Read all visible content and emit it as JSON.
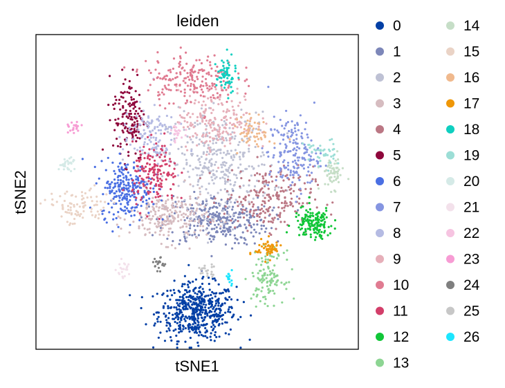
{
  "chart_data": {
    "type": "scatter",
    "title": "leiden",
    "xlabel": "tSNE1",
    "ylabel": "tSNE2",
    "grid": false,
    "legend_position": "right",
    "xlim": [
      0,
      100
    ],
    "ylim": [
      0,
      100
    ],
    "clusters": [
      {
        "name": "0",
        "color": "#023fa5",
        "center": [
          50,
          12
        ],
        "spread": [
          6,
          4.5
        ],
        "n": 520
      },
      {
        "name": "1",
        "color": "#7d87b9",
        "center": [
          56,
          41
        ],
        "spread": [
          8,
          4
        ],
        "n": 300
      },
      {
        "name": "2",
        "color": "#bec1d4",
        "center": [
          57,
          59
        ],
        "spread": [
          8,
          8
        ],
        "n": 340
      },
      {
        "name": "3",
        "color": "#d6bcc0",
        "center": [
          41,
          42
        ],
        "spread": [
          6,
          4
        ],
        "n": 220
      },
      {
        "name": "4",
        "color": "#bb7784",
        "center": [
          72,
          48
        ],
        "spread": [
          7,
          5
        ],
        "n": 220
      },
      {
        "name": "5",
        "color": "#8e063b",
        "center": [
          29,
          74
        ],
        "spread": [
          2.5,
          7
        ],
        "n": 150
      },
      {
        "name": "6",
        "color": "#4a6fe3",
        "center": [
          28,
          51
        ],
        "spread": [
          4,
          4.5
        ],
        "n": 240
      },
      {
        "name": "7",
        "color": "#8595e1",
        "center": [
          80,
          62
        ],
        "spread": [
          4,
          6
        ],
        "n": 180
      },
      {
        "name": "8",
        "color": "#b5bbe3",
        "center": [
          35,
          68
        ],
        "spread": [
          4,
          5
        ],
        "n": 130
      },
      {
        "name": "9",
        "color": "#e6afb9",
        "center": [
          56,
          73
        ],
        "spread": [
          6,
          5
        ],
        "n": 200
      },
      {
        "name": "10",
        "color": "#e07b91",
        "center": [
          48,
          86
        ],
        "spread": [
          7,
          4
        ],
        "n": 200
      },
      {
        "name": "11",
        "color": "#d33f6a",
        "center": [
          37,
          55
        ],
        "spread": [
          3.5,
          5
        ],
        "n": 160
      },
      {
        "name": "12",
        "color": "#11c638",
        "center": [
          86,
          40
        ],
        "spread": [
          3,
          2.5
        ],
        "n": 150
      },
      {
        "name": "13",
        "color": "#8dd593",
        "center": [
          72,
          23
        ],
        "spread": [
          2.5,
          4
        ],
        "n": 120
      },
      {
        "name": "14",
        "color": "#c6dec7",
        "center": [
          92,
          56
        ],
        "spread": [
          1.8,
          2.5
        ],
        "n": 60
      },
      {
        "name": "15",
        "color": "#ead3c6",
        "center": [
          13,
          45
        ],
        "spread": [
          5,
          3
        ],
        "n": 90
      },
      {
        "name": "16",
        "color": "#f0b98d",
        "center": [
          68,
          69
        ],
        "spread": [
          2.5,
          2.5
        ],
        "n": 60
      },
      {
        "name": "17",
        "color": "#ef9708",
        "center": [
          72,
          32
        ],
        "spread": [
          2,
          1.5
        ],
        "n": 60
      },
      {
        "name": "18",
        "color": "#0fcfc0",
        "center": [
          59,
          87
        ],
        "spread": [
          1.5,
          3
        ],
        "n": 60
      },
      {
        "name": "19",
        "color": "#9cded6",
        "center": [
          88,
          62
        ],
        "spread": [
          2.5,
          2.5
        ],
        "n": 40
      },
      {
        "name": "20",
        "color": "#d5eae7",
        "center": [
          10,
          59
        ],
        "spread": [
          1.5,
          1
        ],
        "n": 30
      },
      {
        "name": "21",
        "color": "#f3e1eb",
        "center": [
          27,
          25
        ],
        "spread": [
          1,
          1.5
        ],
        "n": 20
      },
      {
        "name": "22",
        "color": "#f6c4e1",
        "center": [
          44,
          69
        ],
        "spread": [
          1,
          1.5
        ],
        "n": 20
      },
      {
        "name": "23",
        "color": "#f79cd4",
        "center": [
          12,
          70
        ],
        "spread": [
          1,
          1
        ],
        "n": 20
      },
      {
        "name": "24",
        "color": "#7f7f7f",
        "center": [
          38,
          27
        ],
        "spread": [
          1,
          1
        ],
        "n": 20
      },
      {
        "name": "25",
        "color": "#c7c7c7",
        "center": [
          53,
          25
        ],
        "spread": [
          1.5,
          1
        ],
        "n": 20
      },
      {
        "name": "26",
        "color": "#1ce6ff",
        "center": [
          60,
          23
        ],
        "spread": [
          0.8,
          1.2
        ],
        "n": 15
      }
    ]
  }
}
